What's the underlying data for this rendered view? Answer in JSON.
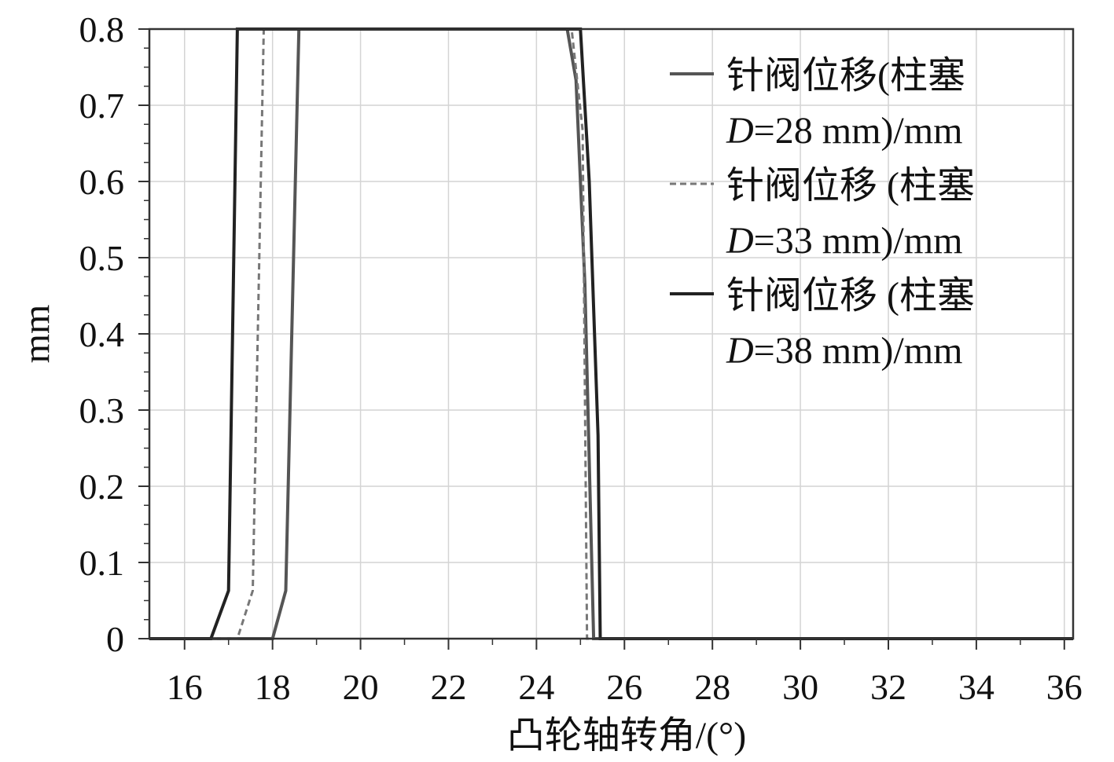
{
  "chart_data": {
    "type": "line",
    "title": "",
    "xlabel": "凸轮轴转角/(°)",
    "ylabel": "mm",
    "xlim": [
      15.2,
      36.2
    ],
    "ylim": [
      0,
      0.8
    ],
    "xticks": [
      16,
      18,
      20,
      22,
      24,
      26,
      28,
      30,
      32,
      34,
      36
    ],
    "xtick_labels": [
      "16",
      "18",
      "20",
      "22",
      "24",
      "26",
      "28",
      "30",
      "32",
      "34",
      "36"
    ],
    "yticks": [
      0,
      0.1,
      0.2,
      0.3,
      0.4,
      0.5,
      0.6,
      0.7,
      0.8
    ],
    "ytick_labels": [
      "0",
      "0.1",
      "0.2",
      "0.3",
      "0.4",
      "0.5",
      "0.6",
      "0.7",
      "0.8"
    ],
    "grid": true,
    "legend_position": "top-right",
    "series": [
      {
        "name_line1": "针阀位移(柱塞",
        "name_italic": "D",
        "name_rest": "=28 mm)/mm",
        "style": "solid",
        "color": "#555555",
        "x": [
          15.2,
          18.0,
          18.3,
          18.6,
          24.7,
          24.9,
          25.1,
          25.3,
          36.2
        ],
        "y": [
          0,
          0,
          0.063,
          0.8,
          0.8,
          0.733,
          0.467,
          0,
          0
        ]
      },
      {
        "name_line1": "针阀位移 (柱塞",
        "name_italic": "D",
        "name_rest": "=33 mm)/mm",
        "style": "dashed",
        "color": "#777777",
        "x": [
          15.2,
          17.2,
          17.55,
          17.8,
          24.8,
          25.05,
          25.15,
          36.2
        ],
        "y": [
          0,
          0,
          0.063,
          0.8,
          0.8,
          0.667,
          0,
          0
        ]
      },
      {
        "name_line1": "针阀位移 (柱塞",
        "name_italic": "D",
        "name_rest": "=38 mm)/mm",
        "style": "solid",
        "color": "#222222",
        "x": [
          15.2,
          16.6,
          17.0,
          17.2,
          25.0,
          25.2,
          25.4,
          25.45,
          36.2
        ],
        "y": [
          0,
          0,
          0.063,
          0.8,
          0.8,
          0.6,
          0.267,
          0,
          0
        ]
      }
    ]
  }
}
